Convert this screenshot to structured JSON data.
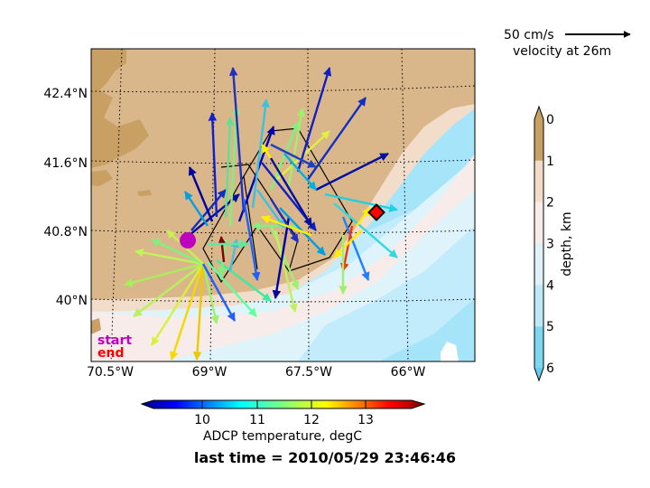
{
  "legend": {
    "scale_label": "50 cm/s",
    "velocity_label": "velocity at 26m",
    "start_label": "start",
    "end_label": "end",
    "start_color": "#c000c0",
    "end_color": "#ff0000"
  },
  "footer": {
    "last_time": "last time = 2010/05/29 23:46:46"
  },
  "map": {
    "lon_ticks": [
      "70.5°W",
      "69°W",
      "67.5°W",
      "66°W"
    ],
    "lat_ticks": [
      "42.4°N",
      "41.6°N",
      "40.8°N",
      "40°N"
    ]
  },
  "depth_colorbar": {
    "label": "depth, km",
    "ticks": [
      "0",
      "1",
      "2",
      "3",
      "4",
      "5",
      "6"
    ],
    "colors": [
      "#c8a064",
      "#f2dcc8",
      "#f7ece8",
      "#dff2fa",
      "#bfe8f7",
      "#7fd6f0"
    ]
  },
  "temp_colorbar": {
    "label": "ADCP temperature, degC",
    "ticks": [
      "10",
      "11",
      "12",
      "13"
    ]
  }
}
